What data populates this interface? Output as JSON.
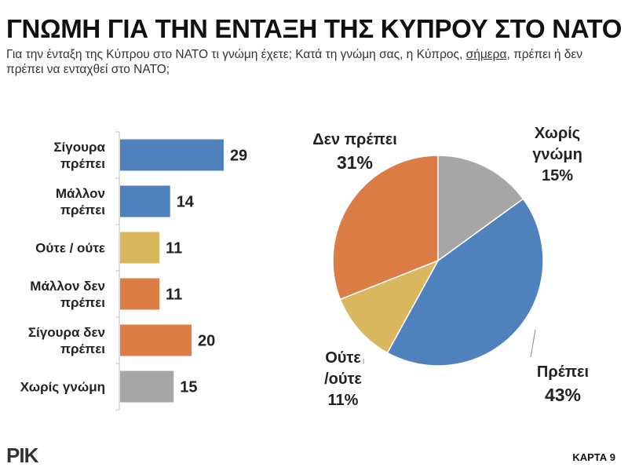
{
  "header": {
    "title": "ΓΝΩΜΗ ΓΙΑ ΤΗΝ ΕΝΤΑΞΗ ΤΗΣ ΚΥΠΡΟΥ ΣΤΟ ΝΑΤΟ",
    "subtitle_part1": "Για την ένταξη της Κύπρου στο ΝΑΤΟ τι γνώμη έχετε; Κατά τη γνώμη σας, η Κύπρος, ",
    "subtitle_underlined": "σήμερα",
    "subtitle_part2": ", πρέπει ή δεν πρέπει να ενταχθεί στο ΝΑΤΟ;"
  },
  "footer": {
    "logo": "ΡΙΚ",
    "map_label": "ΚΑΡΤΑ 9"
  },
  "chart_data": [
    {
      "type": "bar",
      "orientation": "horizontal",
      "categories": [
        [
          "Σίγουρα",
          "πρέπει"
        ],
        [
          "Μάλλον",
          "πρέπει"
        ],
        [
          "Ούτε / ούτε"
        ],
        [
          "Μάλλον δεν",
          "πρέπει"
        ],
        [
          "Σίγουρα δεν",
          "πρέπει"
        ],
        [
          "Χωρίς γνώμη"
        ]
      ],
      "values": [
        29,
        14,
        11,
        11,
        20,
        15
      ],
      "colors": [
        "#4f81bd",
        "#4f81bd",
        "#d9b75f",
        "#dc7d45",
        "#dc7d45",
        "#a6a6a6"
      ],
      "xlim": [
        0,
        50
      ],
      "grid": false
    },
    {
      "type": "pie",
      "slices": [
        {
          "name": [
            "Πρέπει"
          ],
          "pct": "43%",
          "value": 43,
          "color": "#4f81bd"
        },
        {
          "name": [
            "Ούτε",
            "/ούτε"
          ],
          "pct": "11%",
          "value": 11,
          "color": "#d9b75f"
        },
        {
          "name": [
            "Δεν πρέπει"
          ],
          "pct": "31%",
          "value": 31,
          "color": "#dc7d45"
        },
        {
          "name": [
            "Χωρίς",
            "γνώμη"
          ],
          "pct": "15%",
          "value": 15,
          "color": "#a6a6a6"
        }
      ]
    }
  ]
}
